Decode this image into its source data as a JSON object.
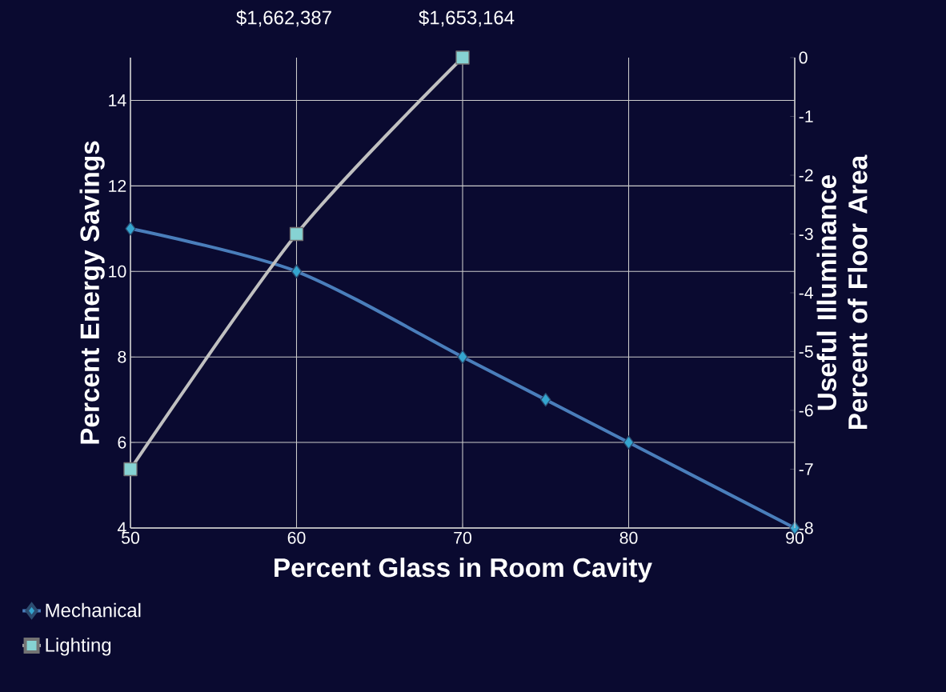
{
  "chart_data": {
    "type": "line",
    "xlabel": "Percent Glass in Room Cavity",
    "ylabel": "Percent Energy Savings",
    "y2label": "Useful Illuminance Percent of Floor Area",
    "xlim": [
      50,
      90
    ],
    "xticks": [
      50,
      60,
      70,
      80,
      90
    ],
    "ylim": [
      4,
      15
    ],
    "yticks": [
      4,
      6,
      8,
      10,
      12,
      14
    ],
    "y2lim": [
      -8,
      0
    ],
    "y2ticks": [
      -8,
      -7,
      -6,
      -5,
      -4,
      -3,
      -2,
      -1,
      0
    ],
    "grid": true,
    "legend": "bottom left",
    "series": [
      {
        "name": "Mechanical",
        "color": "#4a7ebb",
        "marker": "diamond",
        "x": [
          50,
          60,
          70,
          75,
          80,
          90
        ],
        "values": [
          11,
          10,
          8,
          7,
          6,
          4
        ]
      },
      {
        "name": "Lighting",
        "color": "#c0c0c0",
        "marker": "square",
        "axis": "y2",
        "x": [
          50,
          60,
          70
        ],
        "values": [
          -7,
          -3,
          0
        ]
      }
    ],
    "annotations": [
      "$1,662,387",
      "$1,653,164"
    ]
  }
}
